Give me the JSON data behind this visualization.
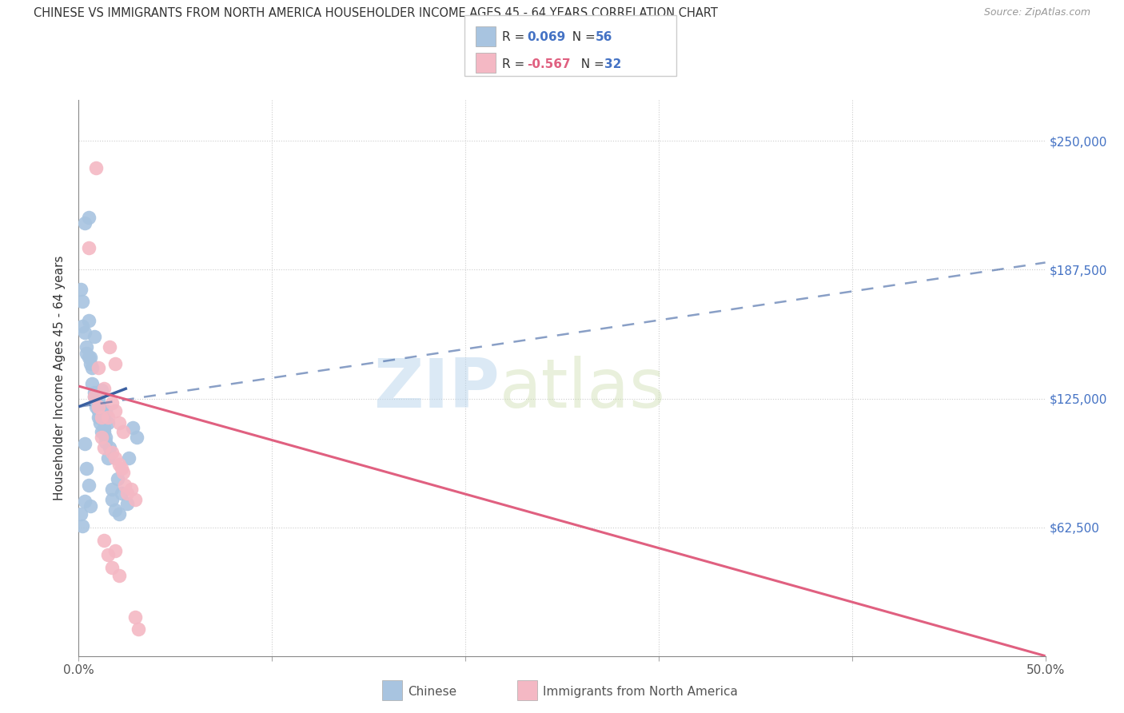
{
  "title": "CHINESE VS IMMIGRANTS FROM NORTH AMERICA HOUSEHOLDER INCOME AGES 45 - 64 YEARS CORRELATION CHART",
  "source": "Source: ZipAtlas.com",
  "ylabel": "Householder Income Ages 45 - 64 years",
  "y_ticks": [
    0,
    62500,
    125000,
    187500,
    250000
  ],
  "x_lim": [
    0.0,
    0.5
  ],
  "y_lim": [
    0,
    270000
  ],
  "watermark_zip": "ZIP",
  "watermark_atlas": "atlas",
  "blue_color": "#a8c4e0",
  "pink_color": "#f4b8c4",
  "blue_line_color": "#3a5fa0",
  "pink_line_color": "#e06080",
  "blue_scatter": [
    [
      0.001,
      178000
    ],
    [
      0.002,
      172000
    ],
    [
      0.003,
      210000
    ],
    [
      0.005,
      213000
    ],
    [
      0.002,
      160000
    ],
    [
      0.003,
      157000
    ],
    [
      0.004,
      150000
    ],
    [
      0.004,
      147000
    ],
    [
      0.005,
      163000
    ],
    [
      0.005,
      145000
    ],
    [
      0.006,
      142000
    ],
    [
      0.006,
      145000
    ],
    [
      0.007,
      140000
    ],
    [
      0.007,
      132000
    ],
    [
      0.008,
      155000
    ],
    [
      0.008,
      128000
    ],
    [
      0.008,
      126000
    ],
    [
      0.009,
      126000
    ],
    [
      0.009,
      123000
    ],
    [
      0.009,
      121000
    ],
    [
      0.01,
      121000
    ],
    [
      0.01,
      119000
    ],
    [
      0.01,
      116000
    ],
    [
      0.01,
      125000
    ],
    [
      0.011,
      121000
    ],
    [
      0.011,
      116000
    ],
    [
      0.011,
      113000
    ],
    [
      0.012,
      129000
    ],
    [
      0.012,
      119000
    ],
    [
      0.012,
      109000
    ],
    [
      0.013,
      116000
    ],
    [
      0.013,
      111000
    ],
    [
      0.013,
      109000
    ],
    [
      0.014,
      104000
    ],
    [
      0.014,
      119000
    ],
    [
      0.014,
      106000
    ],
    [
      0.015,
      113000
    ],
    [
      0.015,
      96000
    ],
    [
      0.016,
      101000
    ],
    [
      0.017,
      81000
    ],
    [
      0.017,
      76000
    ],
    [
      0.019,
      71000
    ],
    [
      0.02,
      86000
    ],
    [
      0.021,
      69000
    ],
    [
      0.022,
      79000
    ],
    [
      0.025,
      74000
    ],
    [
      0.026,
      96000
    ],
    [
      0.028,
      111000
    ],
    [
      0.03,
      106000
    ],
    [
      0.003,
      103000
    ],
    [
      0.004,
      91000
    ],
    [
      0.005,
      83000
    ],
    [
      0.006,
      73000
    ],
    [
      0.001,
      69000
    ],
    [
      0.002,
      63000
    ],
    [
      0.003,
      75000
    ]
  ],
  "pink_scatter": [
    [
      0.009,
      237000
    ],
    [
      0.005,
      198000
    ],
    [
      0.016,
      150000
    ],
    [
      0.019,
      142000
    ],
    [
      0.01,
      140000
    ],
    [
      0.013,
      130000
    ],
    [
      0.017,
      123000
    ],
    [
      0.019,
      119000
    ],
    [
      0.012,
      116000
    ],
    [
      0.021,
      113000
    ],
    [
      0.023,
      109000
    ],
    [
      0.008,
      126000
    ],
    [
      0.01,
      121000
    ],
    [
      0.012,
      106000
    ],
    [
      0.013,
      101000
    ],
    [
      0.015,
      116000
    ],
    [
      0.017,
      99000
    ],
    [
      0.019,
      96000
    ],
    [
      0.021,
      93000
    ],
    [
      0.023,
      89000
    ],
    [
      0.024,
      83000
    ],
    [
      0.025,
      79000
    ],
    [
      0.027,
      81000
    ],
    [
      0.029,
      76000
    ],
    [
      0.013,
      56000
    ],
    [
      0.015,
      49000
    ],
    [
      0.019,
      51000
    ],
    [
      0.022,
      91000
    ],
    [
      0.029,
      19000
    ],
    [
      0.031,
      13000
    ],
    [
      0.017,
      43000
    ],
    [
      0.021,
      39000
    ]
  ],
  "blue_solid_line": {
    "x0": 0.0,
    "x1": 0.025,
    "y0": 121000,
    "y1": 130000
  },
  "blue_dashed_line": {
    "x0": 0.0,
    "x1": 0.5,
    "y0": 121000,
    "y1": 191000
  },
  "pink_solid_line": {
    "x0": 0.0,
    "x1": 0.5,
    "y0": 131000,
    "y1": 0
  },
  "legend": {
    "r1_label": "R = ",
    "r1_val": "0.069",
    "r1_n_label": "N = ",
    "r1_n_val": "56",
    "r2_label": "R = ",
    "r2_val": "-0.567",
    "r2_n_label": "N = ",
    "r2_n_val": "32",
    "val_color": "#4472c4",
    "neg_val_color": "#e06080",
    "n_color": "#4472c4"
  },
  "bottom_legend": {
    "chinese_label": "Chinese",
    "immigrants_label": "Immigrants from North America"
  }
}
